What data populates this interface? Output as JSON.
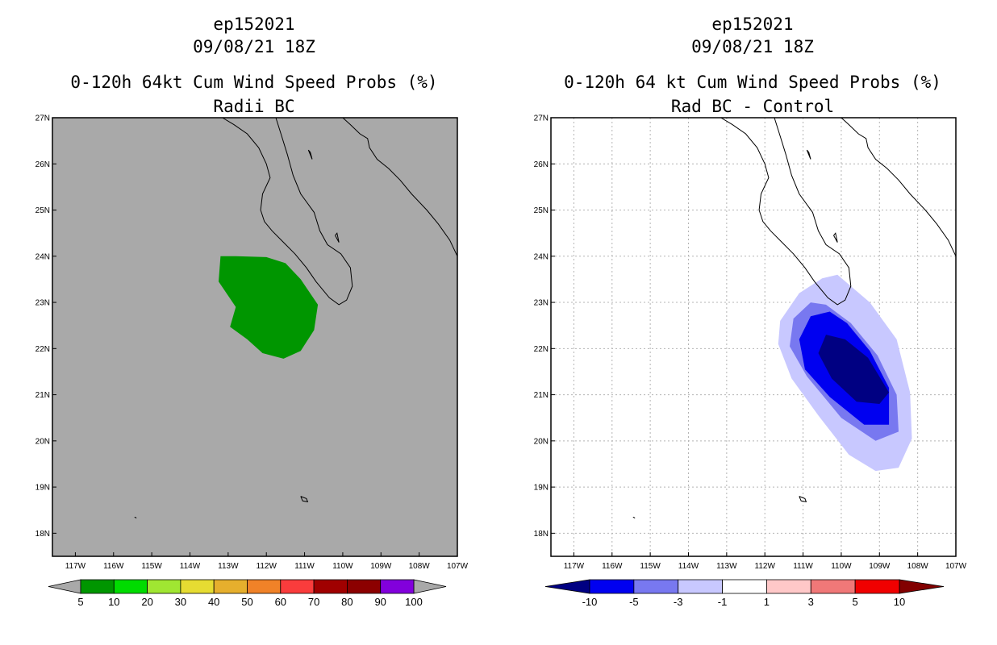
{
  "left_panel": {
    "title_lines": [
      "ep152021",
      "09/08/21 18Z",
      "0-120h 64kt Cum Wind Speed Probs (%)",
      "Radii BC"
    ]
  },
  "right_panel": {
    "title_lines": [
      "ep152021",
      "09/08/21 18Z",
      "0-120h 64 kt Cum Wind Speed Probs (%)",
      "Rad BC - Control"
    ]
  },
  "chart_data": [
    {
      "type": "heatmap",
      "title": "0-120h 64kt Cum Wind Speed Probs (%) Radii BC",
      "xlim": [
        -117.6,
        -107
      ],
      "ylim": [
        17.5,
        27
      ],
      "x_ticks": [
        -117,
        -116,
        -115,
        -114,
        -113,
        -112,
        -111,
        -110,
        -109,
        -108,
        -107
      ],
      "x_tick_labels": [
        "117W",
        "116W",
        "115W",
        "114W",
        "113W",
        "112W",
        "111W",
        "110W",
        "109W",
        "108W",
        "107W"
      ],
      "y_ticks": [
        18,
        19,
        20,
        21,
        22,
        23,
        24,
        25,
        26,
        27
      ],
      "y_tick_labels": [
        "18N",
        "19N",
        "20N",
        "21N",
        "22N",
        "23N",
        "24N",
        "25N",
        "26N",
        "27N"
      ],
      "grid": false,
      "background": "#a9a9a9",
      "contours": [
        {
          "level": 5,
          "color": "#009600",
          "lon_lat": [
            [
              -113.2,
              24.0
            ],
            [
              -112.8,
              24.0
            ],
            [
              -112.0,
              23.98
            ],
            [
              -111.5,
              23.85
            ],
            [
              -111.1,
              23.5
            ],
            [
              -110.65,
              22.95
            ],
            [
              -110.75,
              22.4
            ],
            [
              -111.1,
              21.95
            ],
            [
              -111.55,
              21.78
            ],
            [
              -112.1,
              21.9
            ],
            [
              -112.5,
              22.2
            ],
            [
              -112.95,
              22.47
            ],
            [
              -112.8,
              22.9
            ],
            [
              -113.25,
              23.45
            ]
          ]
        }
      ],
      "colorbar": {
        "labels": [
          "5",
          "10",
          "20",
          "30",
          "40",
          "50",
          "60",
          "70",
          "80",
          "90",
          "100"
        ],
        "colors": [
          "#009600",
          "#00dc00",
          "#a0e632",
          "#e6dc32",
          "#e6af2d",
          "#f08228",
          "#fa3c3c",
          "#a00000",
          "#8c0000",
          "#8200dc"
        ],
        "under_color": "#a9a9a9",
        "over_color": "#a9a9a9"
      }
    },
    {
      "type": "heatmap",
      "title": "0-120h 64 kt Cum Wind Speed Probs (%) Rad BC - Control",
      "xlim": [
        -117.6,
        -107
      ],
      "ylim": [
        17.5,
        27
      ],
      "x_ticks": [
        -117,
        -116,
        -115,
        -114,
        -113,
        -112,
        -111,
        -110,
        -109,
        -108,
        -107
      ],
      "x_tick_labels": [
        "117W",
        "116W",
        "115W",
        "114W",
        "113W",
        "112W",
        "111W",
        "110W",
        "109W",
        "108W",
        "107W"
      ],
      "y_ticks": [
        18,
        19,
        20,
        21,
        22,
        23,
        24,
        25,
        26,
        27
      ],
      "y_tick_labels": [
        "18N",
        "19N",
        "20N",
        "21N",
        "22N",
        "23N",
        "24N",
        "25N",
        "26N",
        "27N"
      ],
      "grid": true,
      "background": "#ffffff",
      "contours": [
        {
          "level": -1,
          "color": "#c8c8ff",
          "lon_lat": [
            [
              -110.1,
              23.6
            ],
            [
              -109.25,
              23.0
            ],
            [
              -108.55,
              22.2
            ],
            [
              -108.2,
              21.05
            ],
            [
              -108.15,
              20.05
            ],
            [
              -108.5,
              19.42
            ],
            [
              -109.1,
              19.35
            ],
            [
              -109.8,
              19.7
            ],
            [
              -110.6,
              20.55
            ],
            [
              -111.3,
              21.35
            ],
            [
              -111.65,
              22.1
            ],
            [
              -111.6,
              22.6
            ],
            [
              -111.1,
              23.2
            ],
            [
              -110.5,
              23.52
            ]
          ]
        },
        {
          "level": -3,
          "color": "#7878f0",
          "lon_lat": [
            [
              -110.8,
              23.0
            ],
            [
              -110.4,
              22.95
            ],
            [
              -109.75,
              22.55
            ],
            [
              -109.05,
              21.85
            ],
            [
              -108.55,
              21.0
            ],
            [
              -108.5,
              20.2
            ],
            [
              -109.1,
              20.0
            ],
            [
              -110.0,
              20.5
            ],
            [
              -110.9,
              21.4
            ],
            [
              -111.35,
              22.05
            ],
            [
              -111.25,
              22.65
            ]
          ]
        },
        {
          "level": -5,
          "color": "#0000f0",
          "lon_lat": [
            [
              -110.3,
              22.8
            ],
            [
              -109.85,
              22.55
            ],
            [
              -109.25,
              21.95
            ],
            [
              -108.75,
              21.15
            ],
            [
              -108.75,
              20.35
            ],
            [
              -109.4,
              20.35
            ],
            [
              -110.3,
              20.95
            ],
            [
              -110.95,
              21.55
            ],
            [
              -111.1,
              22.2
            ],
            [
              -110.8,
              22.7
            ]
          ]
        },
        {
          "level": -10,
          "color": "#000082",
          "lon_lat": [
            [
              -110.4,
              22.3
            ],
            [
              -109.9,
              22.2
            ],
            [
              -109.3,
              21.8
            ],
            [
              -108.75,
              21.05
            ],
            [
              -109.0,
              20.8
            ],
            [
              -109.6,
              20.85
            ],
            [
              -110.25,
              21.35
            ],
            [
              -110.6,
              21.9
            ]
          ]
        }
      ],
      "colorbar": {
        "labels": [
          "-10",
          "-5",
          "-3",
          "-1",
          "1",
          "3",
          "5",
          "10"
        ],
        "colors": [
          "#0000f0",
          "#7878f0",
          "#c8c8ff",
          "#ffffff",
          "#ffc8c8",
          "#f07878",
          "#f00000"
        ],
        "under_color": "#000082",
        "over_color": "#820000"
      }
    }
  ]
}
